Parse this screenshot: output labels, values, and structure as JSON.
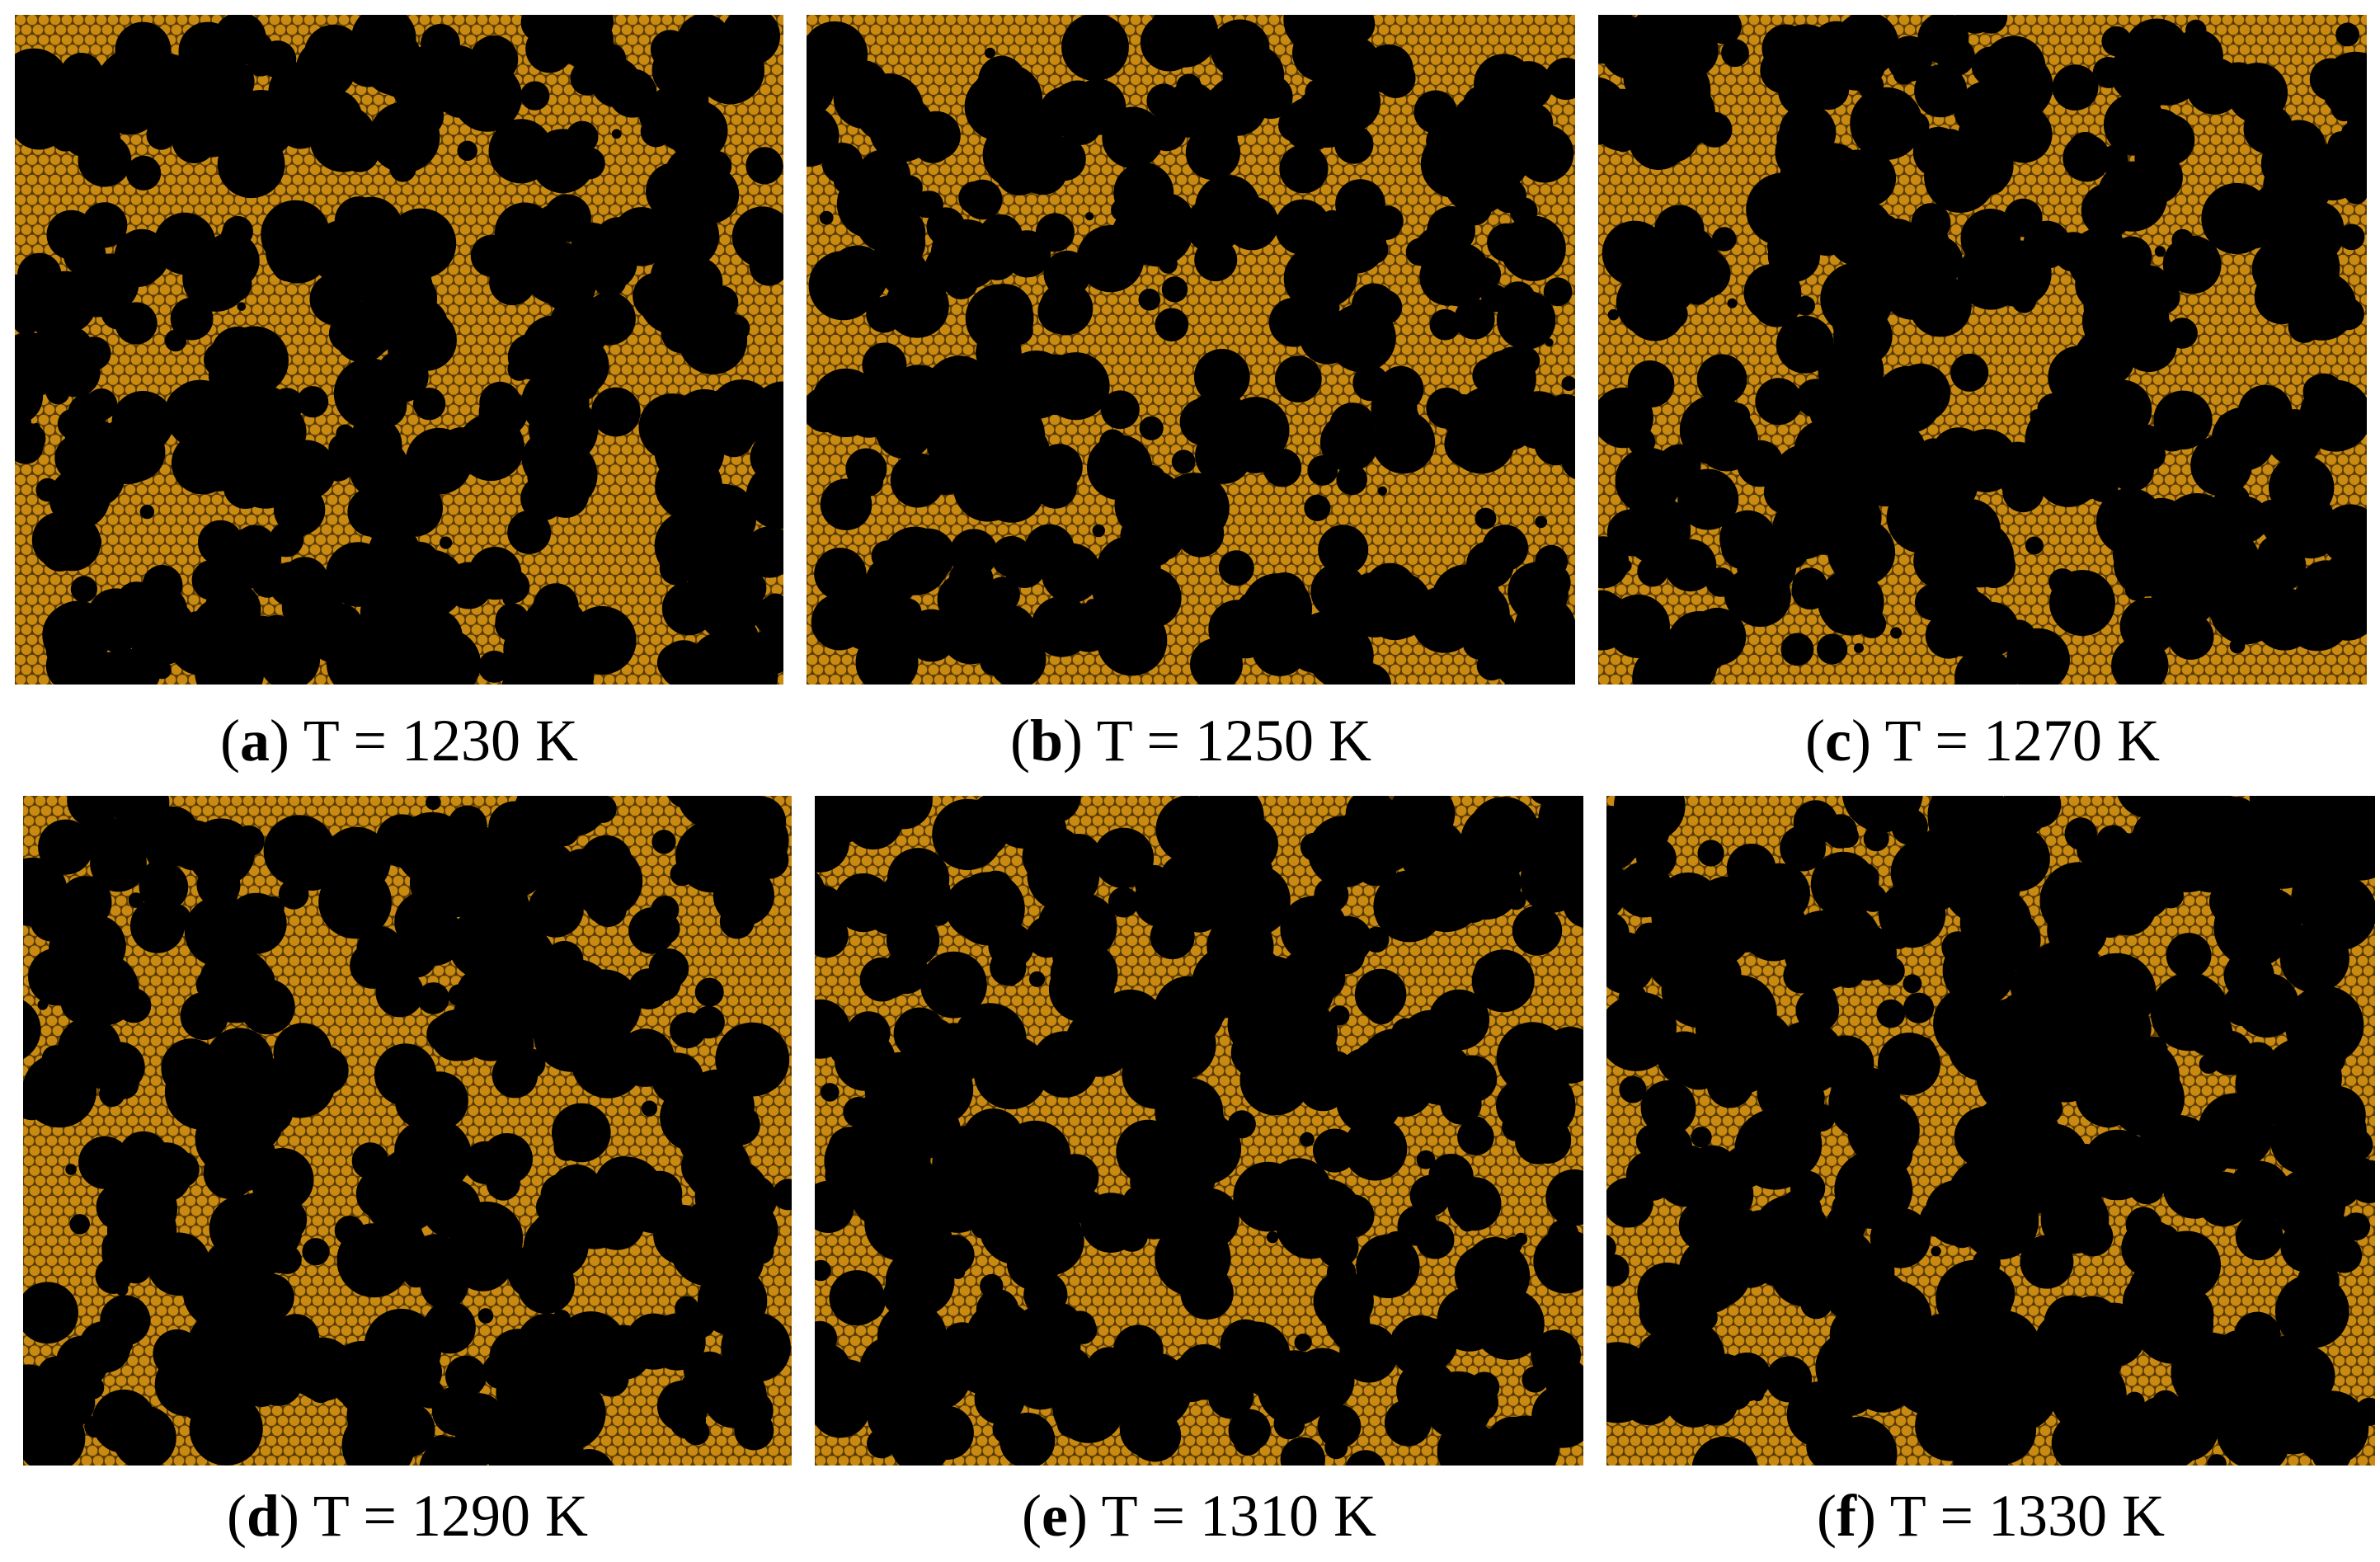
{
  "colors": {
    "film": "#c98a12",
    "atom_edge": "#5a3a00",
    "void": "#000000"
  },
  "panels": [
    {
      "letter": "a",
      "label": "T = 1230 K",
      "seed": 11,
      "coverage": 0.5
    },
    {
      "letter": "b",
      "label": "T = 1250 K",
      "seed": 23,
      "coverage": 0.53
    },
    {
      "letter": "c",
      "label": "T = 1270 K",
      "seed": 37,
      "coverage": 0.57
    },
    {
      "letter": "d",
      "label": "T = 1290 K",
      "seed": 41,
      "coverage": 0.63
    },
    {
      "letter": "e",
      "label": "T = 1310 K",
      "seed": 53,
      "coverage": 0.67
    },
    {
      "letter": "f",
      "label": "T = 1330 K",
      "seed": 67,
      "coverage": 0.78
    }
  ]
}
